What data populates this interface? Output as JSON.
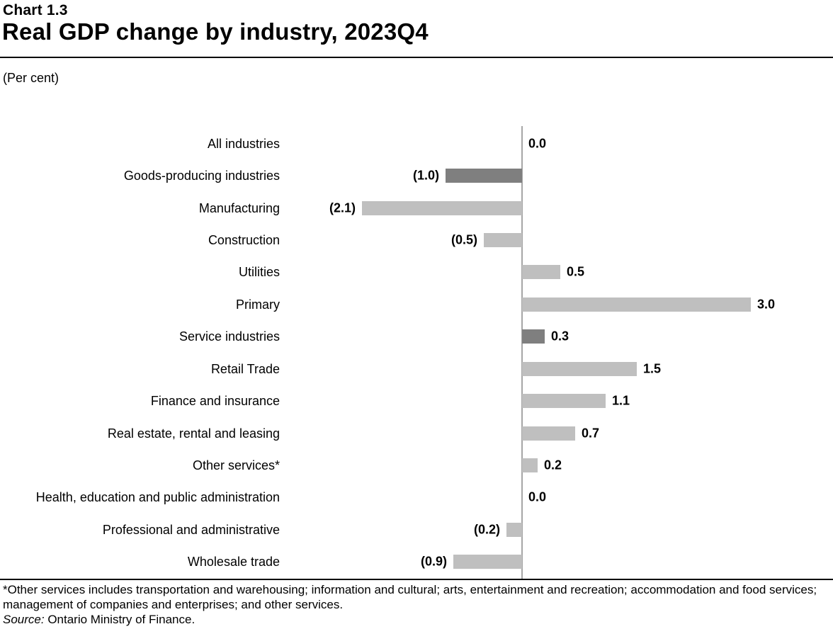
{
  "header": {
    "chart_number": "Chart 1.3",
    "title": "Real GDP change by industry, 2023Q4",
    "unit_label": "(Per cent)"
  },
  "chart_data": {
    "type": "bar",
    "orientation": "horizontal",
    "title": "Real GDP change by industry, 2023Q4",
    "unit": "Per cent",
    "xlabel": "",
    "ylabel": "",
    "xlim": [
      -2.5,
      3.5
    ],
    "grid": false,
    "legend": "none",
    "categories": [
      "All industries",
      "Goods-producing industries",
      "Manufacturing",
      "Construction",
      "Utilities",
      "Primary",
      "Service industries",
      "Retail Trade",
      "Finance and insurance",
      "Real estate, rental and leasing",
      "Other services*",
      "Health, education and public administration",
      "Professional and administrative",
      "Wholesale trade"
    ],
    "values": [
      0.0,
      -1.0,
      -2.1,
      -0.5,
      0.5,
      3.0,
      0.3,
      1.5,
      1.1,
      0.7,
      0.2,
      0.0,
      -0.2,
      -0.9
    ],
    "value_labels": [
      "0.0",
      "(1.0)",
      "(2.1)",
      "(0.5)",
      "0.5",
      "3.0",
      "0.3",
      "1.5",
      "1.1",
      "0.7",
      "0.2",
      "0.0",
      "(0.2)",
      "(0.9)"
    ],
    "emphasis": [
      false,
      true,
      false,
      false,
      false,
      false,
      true,
      false,
      false,
      false,
      false,
      false,
      false,
      false
    ],
    "colors": {
      "bar_light": "#BFBFBF",
      "bar_dark": "#7F7F7F",
      "axis_line": "#A6A6A6",
      "rule": "#000000",
      "text": "#000000"
    }
  },
  "footnotes": {
    "asterisk_note": "*Other services includes transportation and warehousing; information and cultural; arts, entertainment and recreation; accommodation and food services; management of companies and enterprises; and other services.",
    "source_label": "Source:",
    "source_text": " Ontario Ministry of Finance."
  }
}
